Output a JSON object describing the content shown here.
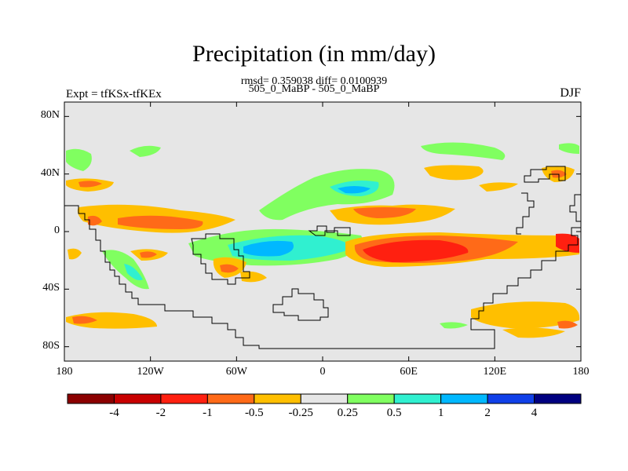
{
  "header": {
    "title": "Precipitation (in mm/day)",
    "stats": "rmsd= 0.359038 diff= 0.0100939",
    "case": "505_0_MaBP - 505_0_MaBP",
    "left_label": "Expt = tfKSx-tfKEx",
    "right_label": "DJF"
  },
  "axes": {
    "y_ticks": [
      "80N",
      "40N",
      "0",
      "40S",
      "80S"
    ],
    "y_values": [
      80,
      40,
      0,
      -40,
      -80
    ],
    "x_ticks": [
      "180",
      "120W",
      "60W",
      "0",
      "60E",
      "120E",
      "180"
    ],
    "x_values": [
      -180,
      -120,
      -60,
      0,
      60,
      120,
      180
    ],
    "lat_range": [
      -90,
      90
    ],
    "lon_range": [
      -180,
      180
    ]
  },
  "colorbar": {
    "colors": [
      "#8b0000",
      "#c80000",
      "#ff2010",
      "#ff6a18",
      "#ffbf00",
      "#e6e6e6",
      "#80ff60",
      "#30f0d0",
      "#00b8ff",
      "#1040e8",
      "#000080"
    ],
    "labels": [
      "-4",
      "-2",
      "-1",
      "-0.5",
      "-0.25",
      "0.25",
      "0.5",
      "1",
      "2",
      "4"
    ]
  },
  "colors": {
    "background": "#e6e6e6",
    "orange": "#ffbf00",
    "dark_orange": "#ff6a18",
    "red": "#ff2010",
    "green": "#80ff60",
    "cyan": "#30f0d0",
    "blue": "#00b8ff"
  }
}
